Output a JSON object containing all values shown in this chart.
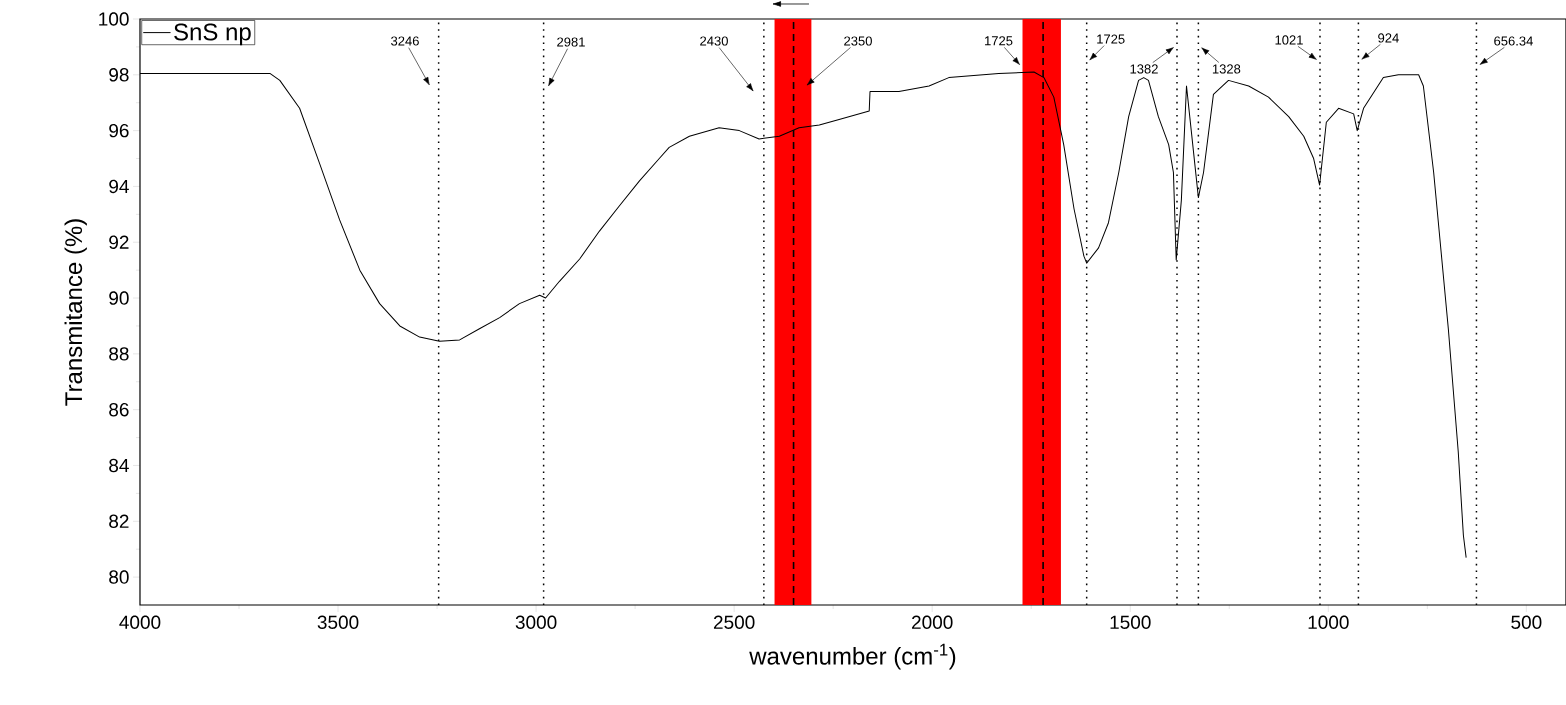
{
  "chart_data": {
    "type": "line",
    "xlabel": "wavenumber (cm$^{-1}$)",
    "ylabel": "Transmitance (%)",
    "xlim": [
      4000,
      400
    ],
    "ylim": [
      79,
      100
    ],
    "xticks": [
      4000,
      3500,
      3000,
      2500,
      2000,
      1500,
      1000,
      500
    ],
    "yticks": [
      80,
      82,
      84,
      86,
      88,
      90,
      92,
      94,
      96,
      98,
      100
    ],
    "legend": "top left",
    "grid": false,
    "line_style": "solid",
    "marker": "none",
    "series": [
      {
        "name": "SnS np",
        "color": "#000000",
        "x": [
          4000,
          3672,
          3647,
          3597,
          3546,
          3496,
          3445,
          3395,
          3344,
          3294,
          3244,
          3193,
          3143,
          3092,
          3042,
          2991,
          2976,
          2941,
          2890,
          2840,
          2790,
          2739,
          2689,
          2664,
          2613,
          2538,
          2487,
          2437,
          2386,
          2336,
          2285,
          2235,
          2159,
          2157,
          2084,
          2008,
          1958,
          1832,
          1743,
          1718,
          1693,
          1668,
          1642,
          1617,
          1610,
          1580,
          1555,
          1529,
          1504,
          1479,
          1466,
          1454,
          1429,
          1403,
          1391,
          1384,
          1371,
          1358,
          1346,
          1328,
          1315,
          1290,
          1252,
          1201,
          1151,
          1100,
          1062,
          1037,
          1022,
          1005,
          974,
          936,
          927,
          911,
          861,
          823,
          772,
          760,
          734,
          697,
          672,
          659,
          652
        ],
        "values": [
          98.05,
          98.05,
          97.8,
          96.8,
          94.8,
          92.8,
          91.0,
          89.8,
          89.0,
          88.6,
          88.45,
          88.5,
          88.9,
          89.3,
          89.8,
          90.1,
          90.0,
          90.6,
          91.4,
          92.4,
          93.3,
          94.2,
          95.0,
          95.4,
          95.8,
          96.1,
          96.0,
          95.7,
          95.8,
          96.1,
          96.2,
          96.4,
          96.7,
          97.4,
          97.4,
          97.6,
          97.9,
          98.05,
          98.1,
          97.9,
          97.2,
          95.5,
          93.2,
          91.5,
          91.25,
          91.8,
          92.7,
          94.5,
          96.5,
          97.8,
          97.9,
          97.8,
          96.5,
          95.5,
          94.5,
          91.36,
          93.5,
          97.6,
          96.0,
          93.6,
          94.5,
          97.3,
          97.8,
          97.6,
          97.2,
          96.5,
          95.8,
          95.0,
          94.05,
          96.3,
          96.8,
          96.6,
          96.0,
          96.8,
          97.9,
          98.0,
          98.0,
          97.6,
          94.5,
          88.9,
          84.5,
          81.5,
          80.7
        ]
      }
    ],
    "ref_lines": [
      {
        "axis": "x",
        "value": 3246,
        "line_style": "dotted",
        "color": "#000000"
      },
      {
        "axis": "x",
        "value": 2981,
        "line_style": "dotted",
        "color": "#000000"
      },
      {
        "axis": "x",
        "value": 2425,
        "line_style": "dotted",
        "color": "#000000"
      },
      {
        "axis": "x",
        "value": 2350,
        "line_style": "dashed",
        "color": "#000000"
      },
      {
        "axis": "x",
        "value": 1720,
        "line_style": "dashed",
        "color": "#000000"
      },
      {
        "axis": "x",
        "value": 1610,
        "line_style": "dotted",
        "color": "#000000"
      },
      {
        "axis": "x",
        "value": 1382,
        "line_style": "dotted",
        "color": "#000000"
      },
      {
        "axis": "x",
        "value": 1328,
        "line_style": "dotted",
        "color": "#000000"
      },
      {
        "axis": "x",
        "value": 1021,
        "line_style": "dotted",
        "color": "#000000"
      },
      {
        "axis": "x",
        "value": 924,
        "line_style": "dotted",
        "color": "#000000"
      },
      {
        "axis": "x",
        "value": 626,
        "line_style": "dotted",
        "color": "#000000"
      }
    ],
    "bands": [
      {
        "axis": "x",
        "from": 2398,
        "to": 2305,
        "color": "#ff0000"
      },
      {
        "axis": "x",
        "from": 1772,
        "to": 1675,
        "color": "#ff0000"
      }
    ],
    "annotations": [
      "3246",
      "2981",
      "2430",
      "2350",
      {
        "text": "1725",
        "x": 1772,
        "y": 98.25
      },
      {
        "text": "1725",
        "x": 1610,
        "y": 98.42
      },
      {
        "text": "1382",
        "x": 1382,
        "y": 99.07
      },
      {
        "text": "1328",
        "x": 1328,
        "y": 99.07
      },
      {
        "text": "1021",
        "x": 1021,
        "y": 98.46
      },
      {
        "text": "924",
        "x": 924,
        "y": 98.46
      },
      {
        "text": "656.34",
        "x": 626,
        "y": 98.28
      }
    ]
  }
}
